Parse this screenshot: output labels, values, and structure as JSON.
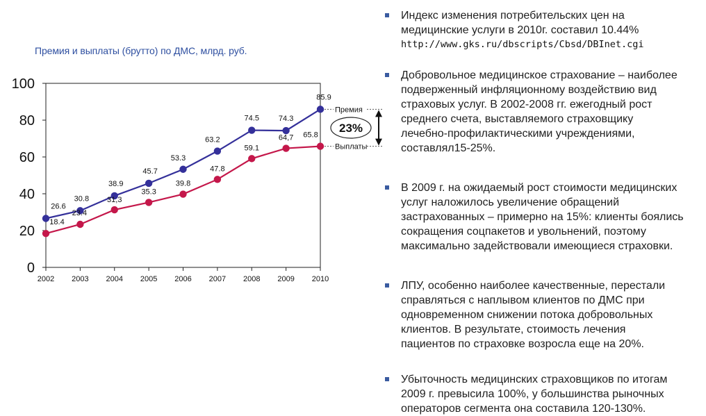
{
  "chart_data": {
    "type": "line",
    "title": "Премия и выплаты (брутто) по ДМС, млрд. руб.",
    "categories": [
      "2002",
      "2003",
      "2004",
      "2005",
      "2006",
      "2007",
      "2008",
      "2009",
      "2010"
    ],
    "series": [
      {
        "name": "Премия",
        "values": [
          26.6,
          30.8,
          38.9,
          45.7,
          53.3,
          63.2,
          74.5,
          74.3,
          85.9
        ],
        "labels": [
          "26.6",
          "30.8",
          "38.9",
          "45.7",
          "53.3",
          "63.2",
          "74.5",
          "74.3",
          "85.9"
        ],
        "color": "#34309a"
      },
      {
        "name": "Выплаты",
        "values": [
          18.4,
          23.4,
          31.3,
          35.3,
          39.8,
          47.8,
          59.1,
          64.7,
          65.8
        ],
        "labels": [
          "18.4",
          "23.4",
          "31,3",
          "35.3",
          "39.8",
          "47.8",
          "59.1",
          "64,7",
          "65.8"
        ],
        "color": "#c4174a"
      }
    ],
    "ylim": [
      0,
      100
    ],
    "yticks": [
      0,
      20,
      40,
      60,
      80,
      100
    ],
    "grid": false,
    "annotation": {
      "text": "23%",
      "between": [
        "Премия",
        "Выплаты"
      ]
    }
  },
  "bullets": [
    {
      "text": "Индекс изменения потребительских цен на\nмедицинские услуги в 2010г. составил 10.44%",
      "url": "http://www.gks.ru/dbscripts/Cbsd/DBInet.cgi"
    },
    {
      "text": "Добровольное медицинское страхование – наиболее\nподверженный инфляционному воздействию вид\nстраховых услуг. В 2002-2008 гг. ежегодный рост\nсреднего счета, выставляемого страховщику\nлечебно-профилактическими учреждениями,\nсоставлял15-25%."
    },
    {
      "text": "В 2009 г. на ожидаемый рост стоимости медицинских\nуслуг наложилось увеличение обращений\nзастрахованных – примерно на 15%: клиенты боялись\nсокращения соцпакетов и увольнений, поэтому\nмаксимально задействовали имеющиеся страховки."
    },
    {
      "text": "ЛПУ, особенно наиболее качественные, перестали\nсправляться с наплывом клиентов по ДМС при\nодновременном снижении потока добровольных\nклиентов. В результате, стоимость лечения\nпациентов по страховке возросла еще на 20%."
    },
    {
      "text": "Убыточность медицинских страховщиков по итогам\n2009 г. превысила 100%, у большинства рыночных\nоператоров сегмента  она составила 120-130%."
    }
  ]
}
